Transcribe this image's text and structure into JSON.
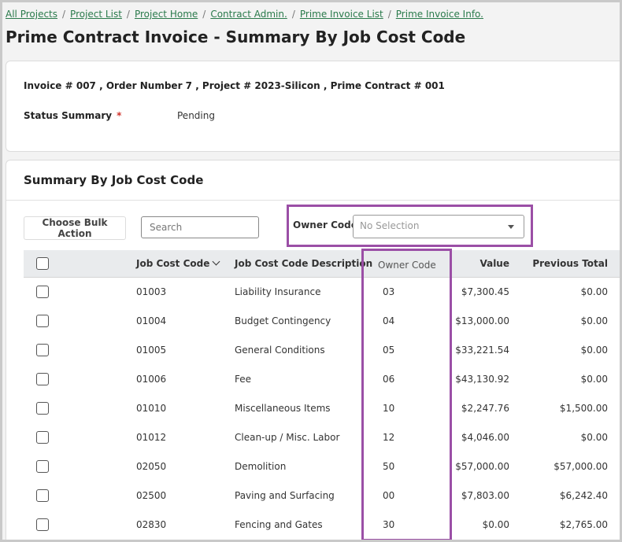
{
  "breadcrumb": [
    "All Projects",
    "Project List",
    "Project Home",
    "Contract Admin.",
    "Prime Invoice List",
    "Prime Invoice Info."
  ],
  "breadcrumb_separator": "/",
  "page_title": "Prime Contract Invoice - Summary By Job Cost Code",
  "invoice_info": "Invoice # 007 , Order Number 7 , Project # 2023-Silicon , Prime Contract # 001",
  "status": {
    "label": "Status Summary",
    "required_mark": "*",
    "value": "Pending"
  },
  "summary": {
    "title": "Summary By Job Cost Code",
    "bulk_action_label": "Choose Bulk Action",
    "search_placeholder": "Search",
    "owner_filter": {
      "label": "Owner Code",
      "selected": "No Selection"
    }
  },
  "table": {
    "columns": [
      "Job Cost Code",
      "Job Cost Code Description",
      "Owner Code",
      "Value",
      "Previous Total"
    ],
    "rows": [
      {
        "code": "01003",
        "description": "Liability Insurance",
        "owner_code": "03",
        "value": "$7,300.45",
        "previous_total": "$0.00"
      },
      {
        "code": "01004",
        "description": "Budget Contingency",
        "owner_code": "04",
        "value": "$13,000.00",
        "previous_total": "$0.00"
      },
      {
        "code": "01005",
        "description": "General Conditions",
        "owner_code": "05",
        "value": "$33,221.54",
        "previous_total": "$0.00"
      },
      {
        "code": "01006",
        "description": "Fee",
        "owner_code": "06",
        "value": "$43,130.92",
        "previous_total": "$0.00"
      },
      {
        "code": "01010",
        "description": "Miscellaneous Items",
        "owner_code": "10",
        "value": "$2,247.76",
        "previous_total": "$1,500.00"
      },
      {
        "code": "01012",
        "description": "Clean-up / Misc. Labor",
        "owner_code": "12",
        "value": "$4,046.00",
        "previous_total": "$0.00"
      },
      {
        "code": "02050",
        "description": "Demolition",
        "owner_code": "50",
        "value": "$57,000.00",
        "previous_total": "$57,000.00"
      },
      {
        "code": "02500",
        "description": "Paving and Surfacing",
        "owner_code": "00",
        "value": "$7,803.00",
        "previous_total": "$6,242.40"
      },
      {
        "code": "02830",
        "description": "Fencing and Gates",
        "owner_code": "30",
        "value": "$0.00",
        "previous_total": "$2,765.00"
      }
    ]
  },
  "colors": {
    "link": "#2a7a4b",
    "highlight": "#9b4fa6",
    "required": "#d0342c",
    "header_bg": "#e9ebed"
  }
}
